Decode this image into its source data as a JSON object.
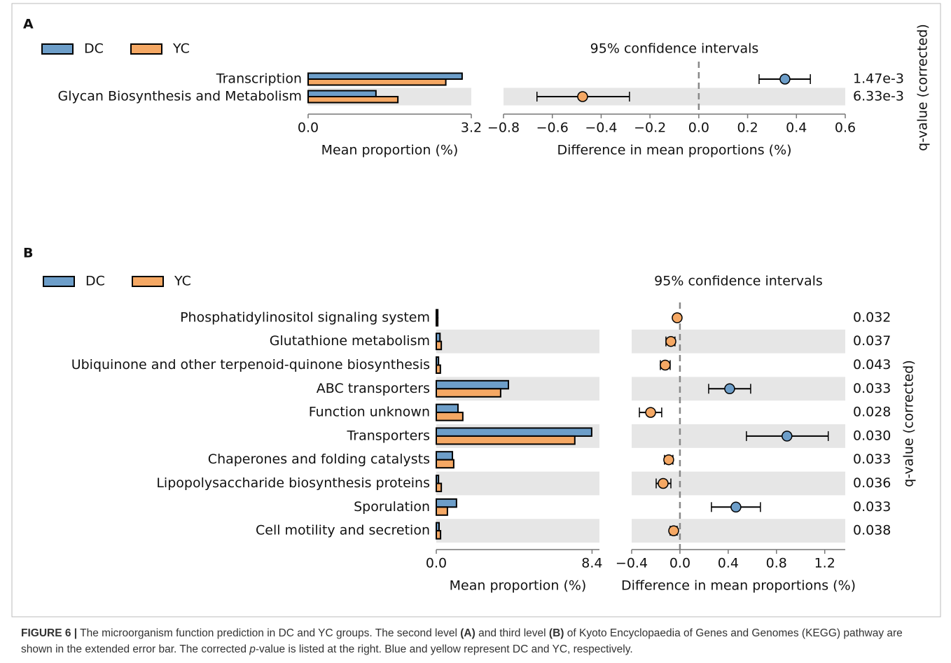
{
  "chart_data": [
    {
      "type": "extended_error_bar",
      "label": "A",
      "categories": [
        "Transcription",
        "Glycan Biosynthesis and Metabolism"
      ],
      "series": [
        {
          "name": "DC",
          "color": "#6d9ec9",
          "values": [
            3.02,
            1.33
          ]
        },
        {
          "name": "YC",
          "color": "#f5a864",
          "values": [
            2.7,
            1.76
          ]
        }
      ],
      "xlim": [
        0,
        3.2
      ],
      "xticks": [
        {
          "value": 0,
          "label": "0.0"
        },
        3.2
      ],
      "xlabel": "Mean proportion (%)",
      "ci_title": "95% confidence intervals",
      "differences": [
        0.353,
        -0.476
      ],
      "ci_low": [
        0.247,
        -0.663
      ],
      "ci_high": [
        0.457,
        -0.284
      ],
      "diff_xlim": [
        -0.8,
        0.6
      ],
      "diff_xticks": [
        {
          "value": -0.8,
          "label": "−0.8"
        },
        {
          "value": -0.6,
          "label": "−0.6"
        },
        {
          "value": -0.4,
          "label": "−0.4"
        },
        {
          "value": -0.2,
          "label": "−0.2"
        },
        {
          "value": 0,
          "label": "0.0"
        },
        0.2,
        0.4,
        0.6
      ],
      "diff_xlabel": "Difference in mean proportions (%)",
      "qvalues": [
        0.00147,
        0.00633
      ],
      "qvalue_labels": [
        "1.47e-3",
        "6.33e-3"
      ],
      "qlabel": "q-value (corrected)",
      "row_shading": true
    },
    {
      "type": "extended_error_bar",
      "label": "B",
      "categories": [
        "Phosphatidylinositol signaling system",
        "Glutathione metabolism",
        "Ubiquinone and other terpenoid-quinone biosynthesis",
        "ABC transporters",
        "Function unknown",
        "Transporters",
        "Chaperones and folding catalysts",
        "Lipopolysaccharide biosynthesis proteins",
        "Sporulation",
        "Cell motility and secretion"
      ],
      "series": [
        {
          "name": "DC",
          "color": "#6d9ec9",
          "values": [
            0.08,
            0.2,
            0.12,
            3.89,
            1.17,
            8.38,
            0.87,
            0.12,
            1.09,
            0.15
          ]
        },
        {
          "name": "YC",
          "color": "#f5a864",
          "values": [
            0.08,
            0.27,
            0.22,
            3.47,
            1.43,
            7.47,
            0.94,
            0.27,
            0.6,
            0.23
          ]
        }
      ],
      "xlim": [
        0,
        8.8
      ],
      "xticks": [
        {
          "value": 0,
          "label": "0.0"
        },
        8.4
      ],
      "xlabel": "Mean proportion (%)",
      "ci_title": "95% confidence intervals",
      "differences": [
        -0.023,
        -0.075,
        -0.122,
        0.412,
        -0.243,
        0.887,
        -0.093,
        -0.139,
        0.464,
        -0.052
      ],
      "ci_low": [
        -0.033,
        -0.116,
        -0.162,
        0.238,
        -0.336,
        0.551,
        -0.128,
        -0.197,
        0.261,
        -0.081
      ],
      "ci_high": [
        -0.013,
        -0.041,
        -0.081,
        0.586,
        -0.151,
        1.229,
        -0.058,
        -0.075,
        0.667,
        -0.023
      ],
      "diff_xlim": [
        -0.4,
        1.37
      ],
      "diff_xticks": [
        {
          "value": -0.4,
          "label": "−0.4"
        },
        {
          "value": 0,
          "label": "0.0"
        },
        0.4,
        0.8,
        1.2
      ],
      "diff_xlabel": "Difference in mean proportions (%)",
      "qvalues": [
        0.032,
        0.037,
        0.043,
        0.033,
        0.028,
        0.03,
        0.033,
        0.036,
        0.033,
        0.038
      ],
      "qvalue_labels": [
        "0.032",
        "0.037",
        "0.043",
        "0.033",
        "0.028",
        "0.030",
        "0.033",
        "0.036",
        "0.033",
        "0.038"
      ],
      "qlabel": "q-value (corrected)",
      "row_shading": true
    }
  ],
  "caption": [
    "FIGURE 6 |",
    " The microorganism function prediction in DC and YC groups. The second level ",
    "(A)",
    " and third level ",
    "(B)",
    " of Kyoto Encyclopaedia of Genes and Genomes (KEGG) pathway are shown in the extended error bar. The corrected ",
    "p",
    "-value is listed at the right. Blue and yellow represent DC and YC, respectively."
  ]
}
